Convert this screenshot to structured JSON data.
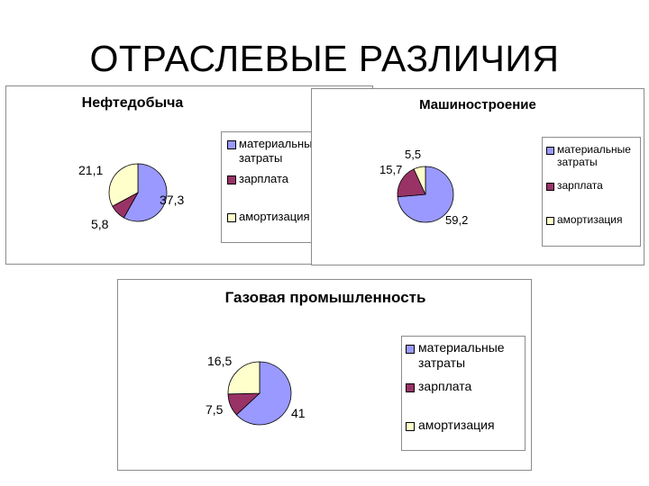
{
  "slide": {
    "title": "ОТРАСЛЕВЫЕ РАЗЛИЧИЯ"
  },
  "colors": {
    "material": "#9999ff",
    "salary": "#993366",
    "amort": "#ffffcc"
  },
  "chart_data": [
    {
      "type": "pie",
      "title": "Нефтедобыча",
      "categories": [
        "материальные затраты",
        "зарплата",
        "амортизация"
      ],
      "values": [
        37.3,
        5.8,
        21.1
      ],
      "value_labels": [
        "37,3",
        "5,8",
        "21,1"
      ],
      "legend": [
        "материальные затраты",
        "зарплата",
        "амортизация"
      ],
      "legend_placement": "right"
    },
    {
      "type": "pie",
      "title": "Машиностроение",
      "categories": [
        "материальные затраты",
        "зарплата",
        "амортизация"
      ],
      "values": [
        59.2,
        15.7,
        5.5
      ],
      "value_labels": [
        "59,2",
        "15,7",
        "5,5"
      ],
      "legend": [
        "материальные затраты",
        "зарплата",
        "амортизация"
      ],
      "legend_placement": "right"
    },
    {
      "type": "pie",
      "title": "Газовая промышленность",
      "categories": [
        "материальные затраты",
        "зарплата",
        "амортизация"
      ],
      "values": [
        41,
        7.5,
        16.5
      ],
      "value_labels": [
        "41",
        "7,5",
        "16,5"
      ],
      "legend": [
        "материальные затраты",
        "зарплата",
        "амортизация"
      ],
      "legend_placement": "right"
    }
  ]
}
